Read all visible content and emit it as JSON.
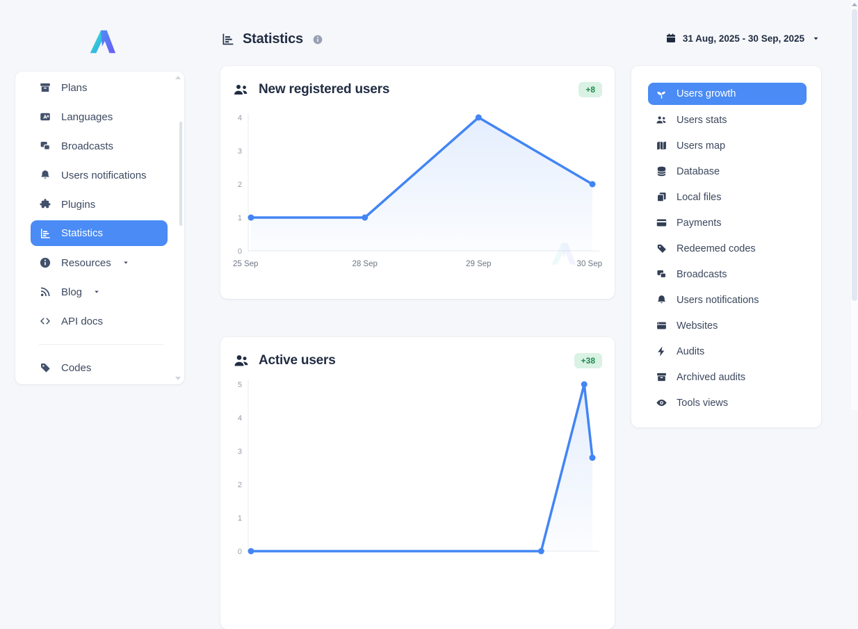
{
  "header": {
    "title": "Statistics",
    "title_icon": "bar-chart-icon",
    "info_icon": "info-icon",
    "calendar_icon": "calendar-icon",
    "date_range": "31 Aug, 2025 - 30 Sep, 2025"
  },
  "left_sidebar": {
    "items": [
      {
        "label": "Plans",
        "icon": "plans-box-icon",
        "selected": false
      },
      {
        "label": "Languages",
        "icon": "translate-icon",
        "selected": false
      },
      {
        "label": "Broadcasts",
        "icon": "broadcast-icon",
        "selected": false
      },
      {
        "label": "Users notifications",
        "icon": "bell-icon",
        "selected": false
      },
      {
        "label": "Plugins",
        "icon": "puzzle-icon",
        "selected": false
      },
      {
        "label": "Statistics",
        "icon": "bar-chart-icon",
        "selected": true
      },
      {
        "label": "Resources",
        "icon": "info-icon",
        "selected": false,
        "has_dropdown": true
      },
      {
        "label": "Blog",
        "icon": "blog-icon",
        "selected": false,
        "has_dropdown": true
      },
      {
        "label": "API docs",
        "icon": "code-icon",
        "selected": false
      },
      {
        "label": "Codes",
        "icon": "tag-icon",
        "selected": false
      }
    ]
  },
  "right_sidebar": {
    "items": [
      {
        "label": "Users growth",
        "icon": "sprout-icon",
        "selected": true
      },
      {
        "label": "Users stats",
        "icon": "users-group-icon",
        "selected": false
      },
      {
        "label": "Users map",
        "icon": "map-icon",
        "selected": false
      },
      {
        "label": "Database",
        "icon": "database-icon",
        "selected": false
      },
      {
        "label": "Local files",
        "icon": "files-icon",
        "selected": false
      },
      {
        "label": "Payments",
        "icon": "credit-card-icon",
        "selected": false
      },
      {
        "label": "Redeemed codes",
        "icon": "tag-icon",
        "selected": false
      },
      {
        "label": "Broadcasts",
        "icon": "broadcast-icon",
        "selected": false
      },
      {
        "label": "Users notifications",
        "icon": "bell-icon",
        "selected": false
      },
      {
        "label": "Websites",
        "icon": "browser-icon",
        "selected": false
      },
      {
        "label": "Audits",
        "icon": "bolt-icon",
        "selected": false
      },
      {
        "label": "Archived audits",
        "icon": "archive-icon",
        "selected": false
      },
      {
        "label": "Tools views",
        "icon": "eye-icon",
        "selected": false
      }
    ]
  },
  "chart_data": [
    {
      "type": "line",
      "title": "New registered users",
      "title_icon": "users-group-icon",
      "badge": "+8",
      "categories": [
        "25 Sep",
        "28 Sep",
        "29 Sep",
        "30 Sep"
      ],
      "values": [
        1,
        1,
        4,
        2
      ],
      "ylim": [
        0,
        4
      ],
      "yticks": [
        0,
        1,
        2,
        3,
        4
      ],
      "line_color": "#4285f4",
      "area_fill": true,
      "grid": false,
      "legend": false
    },
    {
      "type": "line",
      "title": "Active users",
      "title_icon": "users-pair-icon",
      "badge": "+38",
      "categories": [],
      "points_frac": [
        [
          0,
          0
        ],
        [
          0.85,
          0
        ],
        [
          0.976,
          5
        ],
        [
          1,
          2.8
        ]
      ],
      "ylim": [
        0,
        5
      ],
      "yticks": [
        0,
        1,
        2,
        3,
        4,
        5
      ],
      "line_color": "#4285f4",
      "area_fill": true,
      "grid": false,
      "legend": false
    }
  ],
  "colors": {
    "accent_blue": "#4285f4",
    "selected_pill": "#4a8bf5",
    "badge_bg": "#d9f2e3",
    "badge_text": "#1e8a52",
    "page_bg": "#f5f7fa",
    "card_bg": "#ffffff",
    "text_dark": "#222d43",
    "text_slate": "#3d4a61",
    "axis_text": "#949ba8"
  }
}
